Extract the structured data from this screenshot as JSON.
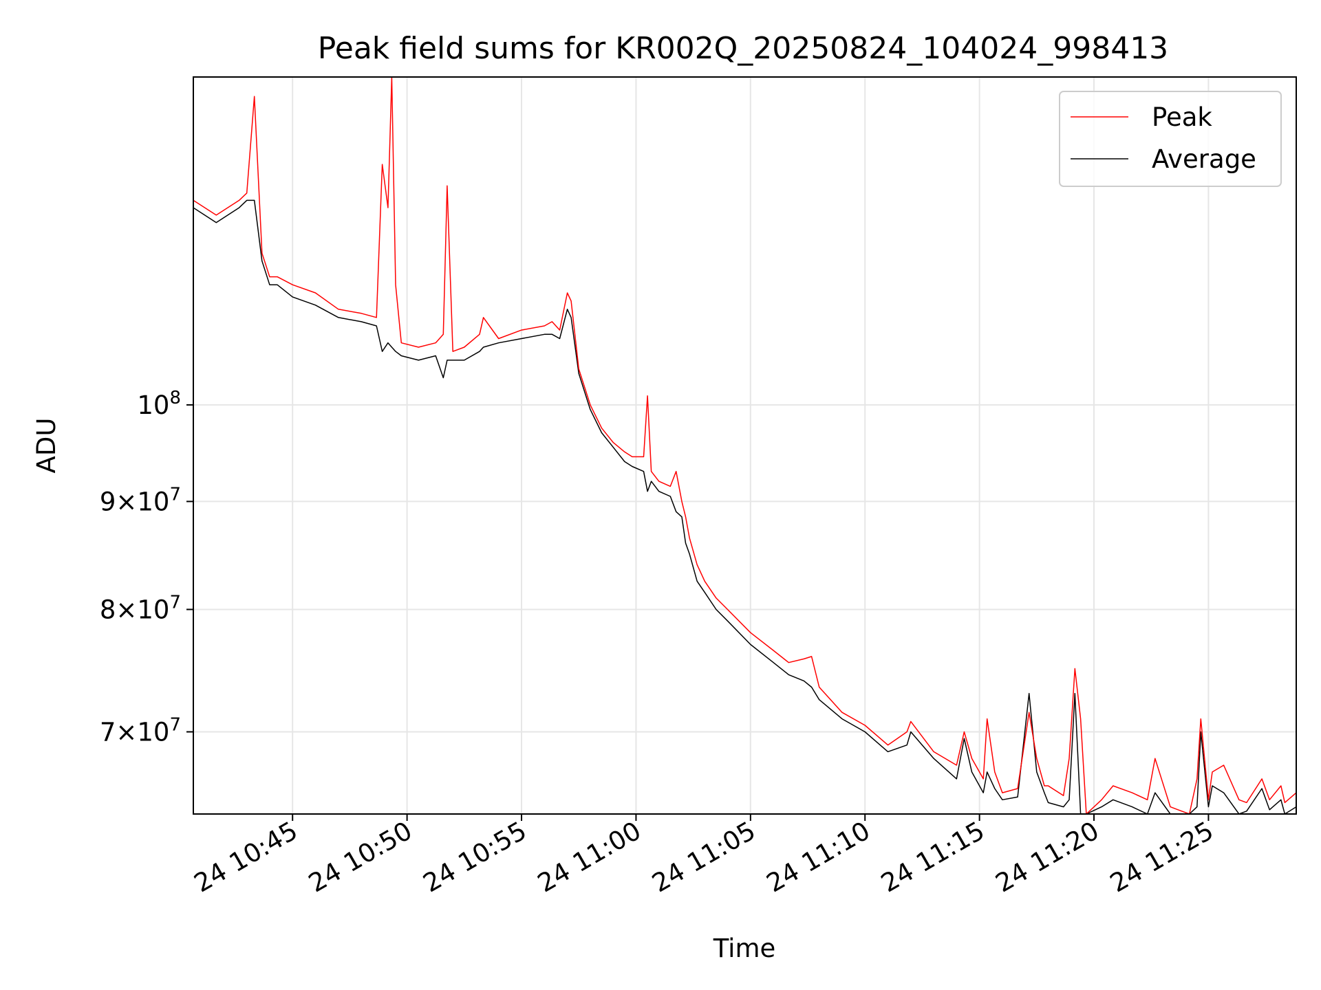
{
  "chart_data": {
    "type": "line",
    "title": "Peak field sums for KR002Q_20250824_104024_998413",
    "xlabel": "Time",
    "ylabel": "ADU",
    "y_scale": "log",
    "ylim": [
      64000000,
      143000000
    ],
    "xlim": [
      "2025-08-24T10:40:40",
      "2025-08-24T11:28:50"
    ],
    "grid": true,
    "legend": "upper right",
    "x_ticks": [
      {
        "t": "2025-08-24T10:45:00",
        "label": "24 10:45"
      },
      {
        "t": "2025-08-24T10:50:00",
        "label": "24 10:50"
      },
      {
        "t": "2025-08-24T10:55:00",
        "label": "24 10:55"
      },
      {
        "t": "2025-08-24T11:00:00",
        "label": "24 11:00"
      },
      {
        "t": "2025-08-24T11:05:00",
        "label": "24 11:05"
      },
      {
        "t": "2025-08-24T11:10:00",
        "label": "24 11:10"
      },
      {
        "t": "2025-08-24T11:15:00",
        "label": "24 11:15"
      },
      {
        "t": "2025-08-24T11:20:00",
        "label": "24 11:20"
      },
      {
        "t": "2025-08-24T11:25:00",
        "label": "24 11:25"
      }
    ],
    "y_ticks": [
      {
        "value": 70000000,
        "mant": "7",
        "exp": "7"
      },
      {
        "value": 80000000,
        "mant": "8",
        "exp": "7"
      },
      {
        "value": 90000000,
        "mant": "9",
        "exp": "7"
      },
      {
        "value": 100000000,
        "mant": "",
        "exp": "8"
      }
    ],
    "series": [
      {
        "name": "Peak",
        "color": "#ff0000",
        "x": [
          "2025-08-24T10:40:40",
          "2025-08-24T10:41:40",
          "2025-08-24T10:42:40",
          "2025-08-24T10:43:00",
          "2025-08-24T10:43:20",
          "2025-08-24T10:43:40",
          "2025-08-24T10:44:00",
          "2025-08-24T10:44:20",
          "2025-08-24T10:45:00",
          "2025-08-24T10:46:00",
          "2025-08-24T10:47:00",
          "2025-08-24T10:48:00",
          "2025-08-24T10:48:40",
          "2025-08-24T10:48:55",
          "2025-08-24T10:49:10",
          "2025-08-24T10:49:20",
          "2025-08-24T10:49:30",
          "2025-08-24T10:49:45",
          "2025-08-24T10:50:30",
          "2025-08-24T10:51:15",
          "2025-08-24T10:51:35",
          "2025-08-24T10:51:45",
          "2025-08-24T10:52:00",
          "2025-08-24T10:52:30",
          "2025-08-24T10:53:10",
          "2025-08-24T10:53:20",
          "2025-08-24T10:54:00",
          "2025-08-24T10:55:00",
          "2025-08-24T10:56:00",
          "2025-08-24T10:56:20",
          "2025-08-24T10:56:40",
          "2025-08-24T10:57:00",
          "2025-08-24T10:57:10",
          "2025-08-24T10:57:30",
          "2025-08-24T10:58:00",
          "2025-08-24T10:58:30",
          "2025-08-24T10:59:00",
          "2025-08-24T10:59:30",
          "2025-08-24T10:59:50",
          "2025-08-24T11:00:20",
          "2025-08-24T11:00:30",
          "2025-08-24T11:00:40",
          "2025-08-24T11:01:00",
          "2025-08-24T11:01:30",
          "2025-08-24T11:01:45",
          "2025-08-24T11:02:00",
          "2025-08-24T11:02:10",
          "2025-08-24T11:02:20",
          "2025-08-24T11:02:40",
          "2025-08-24T11:03:00",
          "2025-08-24T11:03:30",
          "2025-08-24T11:04:00",
          "2025-08-24T11:05:00",
          "2025-08-24T11:06:00",
          "2025-08-24T11:06:40",
          "2025-08-24T11:07:20",
          "2025-08-24T11:07:40",
          "2025-08-24T11:08:00",
          "2025-08-24T11:09:00",
          "2025-08-24T11:10:00",
          "2025-08-24T11:11:00",
          "2025-08-24T11:11:50",
          "2025-08-24T11:12:00",
          "2025-08-24T11:13:00",
          "2025-08-24T11:14:00",
          "2025-08-24T11:14:20",
          "2025-08-24T11:14:40",
          "2025-08-24T11:15:10",
          "2025-08-24T11:15:20",
          "2025-08-24T11:15:40",
          "2025-08-24T11:16:00",
          "2025-08-24T11:16:40",
          "2025-08-24T11:17:10",
          "2025-08-24T11:17:30",
          "2025-08-24T11:17:50",
          "2025-08-24T11:18:00",
          "2025-08-24T11:18:40",
          "2025-08-24T11:18:55",
          "2025-08-24T11:19:10",
          "2025-08-24T11:19:25",
          "2025-08-24T11:19:40",
          "2025-08-24T11:20:20",
          "2025-08-24T11:20:50",
          "2025-08-24T11:21:40",
          "2025-08-24T11:22:20",
          "2025-08-24T11:22:40",
          "2025-08-24T11:23:20",
          "2025-08-24T11:23:40",
          "2025-08-24T11:24:10",
          "2025-08-24T11:24:30",
          "2025-08-24T11:24:40",
          "2025-08-24T11:25:00",
          "2025-08-24T11:25:10",
          "2025-08-24T11:25:40",
          "2025-08-24T11:26:20",
          "2025-08-24T11:26:40",
          "2025-08-24T11:27:20",
          "2025-08-24T11:27:40",
          "2025-08-24T11:28:10",
          "2025-08-24T11:28:20",
          "2025-08-24T11:28:50"
        ],
        "values": [
          125000000,
          123000000,
          125000000,
          126000000,
          140000000,
          118000000,
          115000000,
          115000000,
          114000000,
          113000000,
          111000000,
          110500000,
          110000000,
          130000000,
          124000000,
          143000000,
          114000000,
          107000000,
          106500000,
          107000000,
          108000000,
          127000000,
          106000000,
          106500000,
          108000000,
          110000000,
          107500000,
          108500000,
          109000000,
          109500000,
          108500000,
          113000000,
          112000000,
          104000000,
          100000000,
          97500000,
          96000000,
          95000000,
          94500000,
          94500000,
          101000000,
          93000000,
          92000000,
          91500000,
          93000000,
          90000000,
          88500000,
          86500000,
          84000000,
          82500000,
          81000000,
          80000000,
          78000000,
          76500000,
          75500000,
          75800000,
          76000000,
          73500000,
          71500000,
          70500000,
          69000000,
          70000000,
          70800000,
          68500000,
          67500000,
          70000000,
          68000000,
          66500000,
          71000000,
          67000000,
          65500000,
          65800000,
          71500000,
          68000000,
          66000000,
          66000000,
          65300000,
          68000000,
          75000000,
          71000000,
          64000000,
          65000000,
          66000000,
          65500000,
          65000000,
          68000000,
          64500000,
          64300000,
          64000000,
          66500000,
          71000000,
          65000000,
          67000000,
          67500000,
          65000000,
          64800000,
          66500000,
          65000000,
          66000000,
          64800000,
          65500000
        ]
      },
      {
        "name": "Average",
        "color": "#000000",
        "x": [
          "2025-08-24T10:40:40",
          "2025-08-24T10:41:40",
          "2025-08-24T10:42:40",
          "2025-08-24T10:43:00",
          "2025-08-24T10:43:20",
          "2025-08-24T10:43:40",
          "2025-08-24T10:44:00",
          "2025-08-24T10:44:20",
          "2025-08-24T10:45:00",
          "2025-08-24T10:46:00",
          "2025-08-24T10:47:00",
          "2025-08-24T10:48:00",
          "2025-08-24T10:48:40",
          "2025-08-24T10:48:55",
          "2025-08-24T10:49:10",
          "2025-08-24T10:49:20",
          "2025-08-24T10:49:30",
          "2025-08-24T10:49:45",
          "2025-08-24T10:50:30",
          "2025-08-24T10:51:15",
          "2025-08-24T10:51:35",
          "2025-08-24T10:51:45",
          "2025-08-24T10:52:00",
          "2025-08-24T10:52:30",
          "2025-08-24T10:53:10",
          "2025-08-24T10:53:20",
          "2025-08-24T10:54:00",
          "2025-08-24T10:55:00",
          "2025-08-24T10:56:00",
          "2025-08-24T10:56:20",
          "2025-08-24T10:56:40",
          "2025-08-24T10:57:00",
          "2025-08-24T10:57:10",
          "2025-08-24T10:57:30",
          "2025-08-24T10:58:00",
          "2025-08-24T10:58:30",
          "2025-08-24T10:59:00",
          "2025-08-24T10:59:30",
          "2025-08-24T10:59:50",
          "2025-08-24T11:00:20",
          "2025-08-24T11:00:30",
          "2025-08-24T11:00:40",
          "2025-08-24T11:01:00",
          "2025-08-24T11:01:30",
          "2025-08-24T11:01:45",
          "2025-08-24T11:02:00",
          "2025-08-24T11:02:10",
          "2025-08-24T11:02:20",
          "2025-08-24T11:02:40",
          "2025-08-24T11:03:00",
          "2025-08-24T11:03:30",
          "2025-08-24T11:04:00",
          "2025-08-24T11:05:00",
          "2025-08-24T11:06:00",
          "2025-08-24T11:06:40",
          "2025-08-24T11:07:20",
          "2025-08-24T11:07:40",
          "2025-08-24T11:08:00",
          "2025-08-24T11:09:00",
          "2025-08-24T11:10:00",
          "2025-08-24T11:11:00",
          "2025-08-24T11:11:50",
          "2025-08-24T11:12:00",
          "2025-08-24T11:13:00",
          "2025-08-24T11:14:00",
          "2025-08-24T11:14:20",
          "2025-08-24T11:14:40",
          "2025-08-24T11:15:10",
          "2025-08-24T11:15:20",
          "2025-08-24T11:15:40",
          "2025-08-24T11:16:00",
          "2025-08-24T11:16:40",
          "2025-08-24T11:17:10",
          "2025-08-24T11:17:30",
          "2025-08-24T11:17:50",
          "2025-08-24T11:18:00",
          "2025-08-24T11:18:40",
          "2025-08-24T11:18:55",
          "2025-08-24T11:19:10",
          "2025-08-24T11:19:25",
          "2025-08-24T11:19:40",
          "2025-08-24T11:20:20",
          "2025-08-24T11:20:50",
          "2025-08-24T11:21:40",
          "2025-08-24T11:22:20",
          "2025-08-24T11:22:40",
          "2025-08-24T11:23:20",
          "2025-08-24T11:23:40",
          "2025-08-24T11:24:10",
          "2025-08-24T11:24:30",
          "2025-08-24T11:24:40",
          "2025-08-24T11:25:00",
          "2025-08-24T11:25:10",
          "2025-08-24T11:25:40",
          "2025-08-24T11:26:20",
          "2025-08-24T11:26:40",
          "2025-08-24T11:27:20",
          "2025-08-24T11:27:40",
          "2025-08-24T11:28:10",
          "2025-08-24T11:28:20",
          "2025-08-24T11:28:50"
        ],
        "values": [
          124000000,
          122000000,
          124000000,
          125000000,
          125000000,
          117000000,
          114000000,
          114000000,
          112500000,
          111500000,
          110000000,
          109500000,
          109000000,
          106000000,
          107000000,
          106500000,
          106000000,
          105500000,
          105000000,
          105500000,
          103000000,
          105000000,
          105000000,
          105000000,
          106000000,
          106500000,
          107000000,
          107500000,
          108000000,
          108000000,
          107500000,
          111000000,
          110000000,
          103500000,
          99500000,
          97000000,
          95500000,
          94000000,
          93500000,
          93000000,
          91000000,
          92000000,
          91000000,
          90500000,
          89000000,
          88500000,
          86000000,
          85000000,
          82500000,
          81500000,
          80000000,
          79000000,
          77000000,
          75500000,
          74500000,
          74000000,
          73500000,
          72500000,
          71000000,
          70000000,
          68500000,
          69000000,
          70000000,
          68000000,
          66500000,
          69500000,
          67000000,
          65500000,
          67000000,
          65800000,
          65000000,
          65200000,
          73000000,
          67000000,
          65500000,
          64800000,
          64500000,
          65000000,
          73000000,
          64000000,
          64000000,
          64500000,
          65000000,
          64500000,
          64000000,
          65500000,
          64000000,
          64000000,
          64000000,
          64500000,
          70000000,
          64500000,
          66000000,
          65500000,
          64000000,
          64200000,
          65800000,
          64300000,
          65000000,
          64000000,
          64500000
        ]
      }
    ]
  }
}
